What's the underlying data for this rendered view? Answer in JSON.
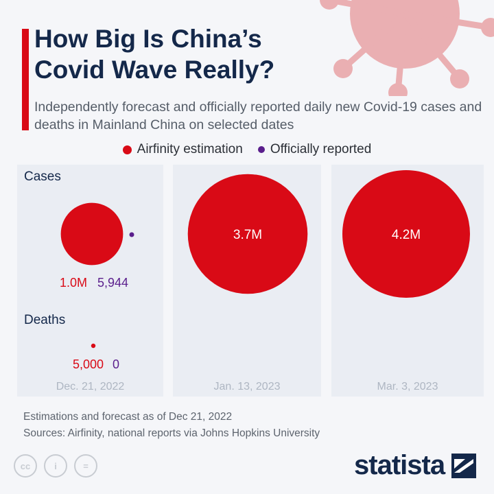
{
  "header": {
    "title": "How Big Is China’s Covid Wave Really?",
    "subtitle": "Independently forecast and officially reported daily new Covid-19 cases and deaths in Mainland China on selected dates"
  },
  "legend": [
    {
      "label": "Airfinity estimation",
      "color": "#d90a16"
    },
    {
      "label": "Officially reported",
      "color": "#5a1e8c"
    }
  ],
  "chart_data": {
    "type": "bubble",
    "title": "How Big Is China’s Covid Wave Really?",
    "metrics_labels": {
      "cases": "Cases",
      "deaths": "Deaths"
    },
    "dates": [
      "Dec. 21, 2022",
      "Jan. 13, 2023",
      "Mar. 3, 2023"
    ],
    "series": [
      {
        "name": "Airfinity estimation",
        "color": "#d90a16",
        "cases": [
          1000000,
          3700000,
          4200000
        ],
        "cases_labels": [
          "1.0M",
          "3.7M",
          "4.2M"
        ],
        "deaths": [
          5000
        ],
        "deaths_labels": [
          "5,000"
        ]
      },
      {
        "name": "Officially reported",
        "color": "#5a1e8c",
        "cases": [
          5944
        ],
        "cases_labels": [
          "5,944"
        ],
        "deaths": [
          0
        ],
        "deaths_labels": [
          "0"
        ]
      }
    ]
  },
  "footer": {
    "note": "Estimations and forecast as of Dec 21, 2022",
    "sources": "Sources: Airfinity, national reports via Johns Hopkins University",
    "brand": "statista",
    "cc_icons": [
      "cc-icon",
      "by-icon",
      "nd-icon"
    ]
  }
}
